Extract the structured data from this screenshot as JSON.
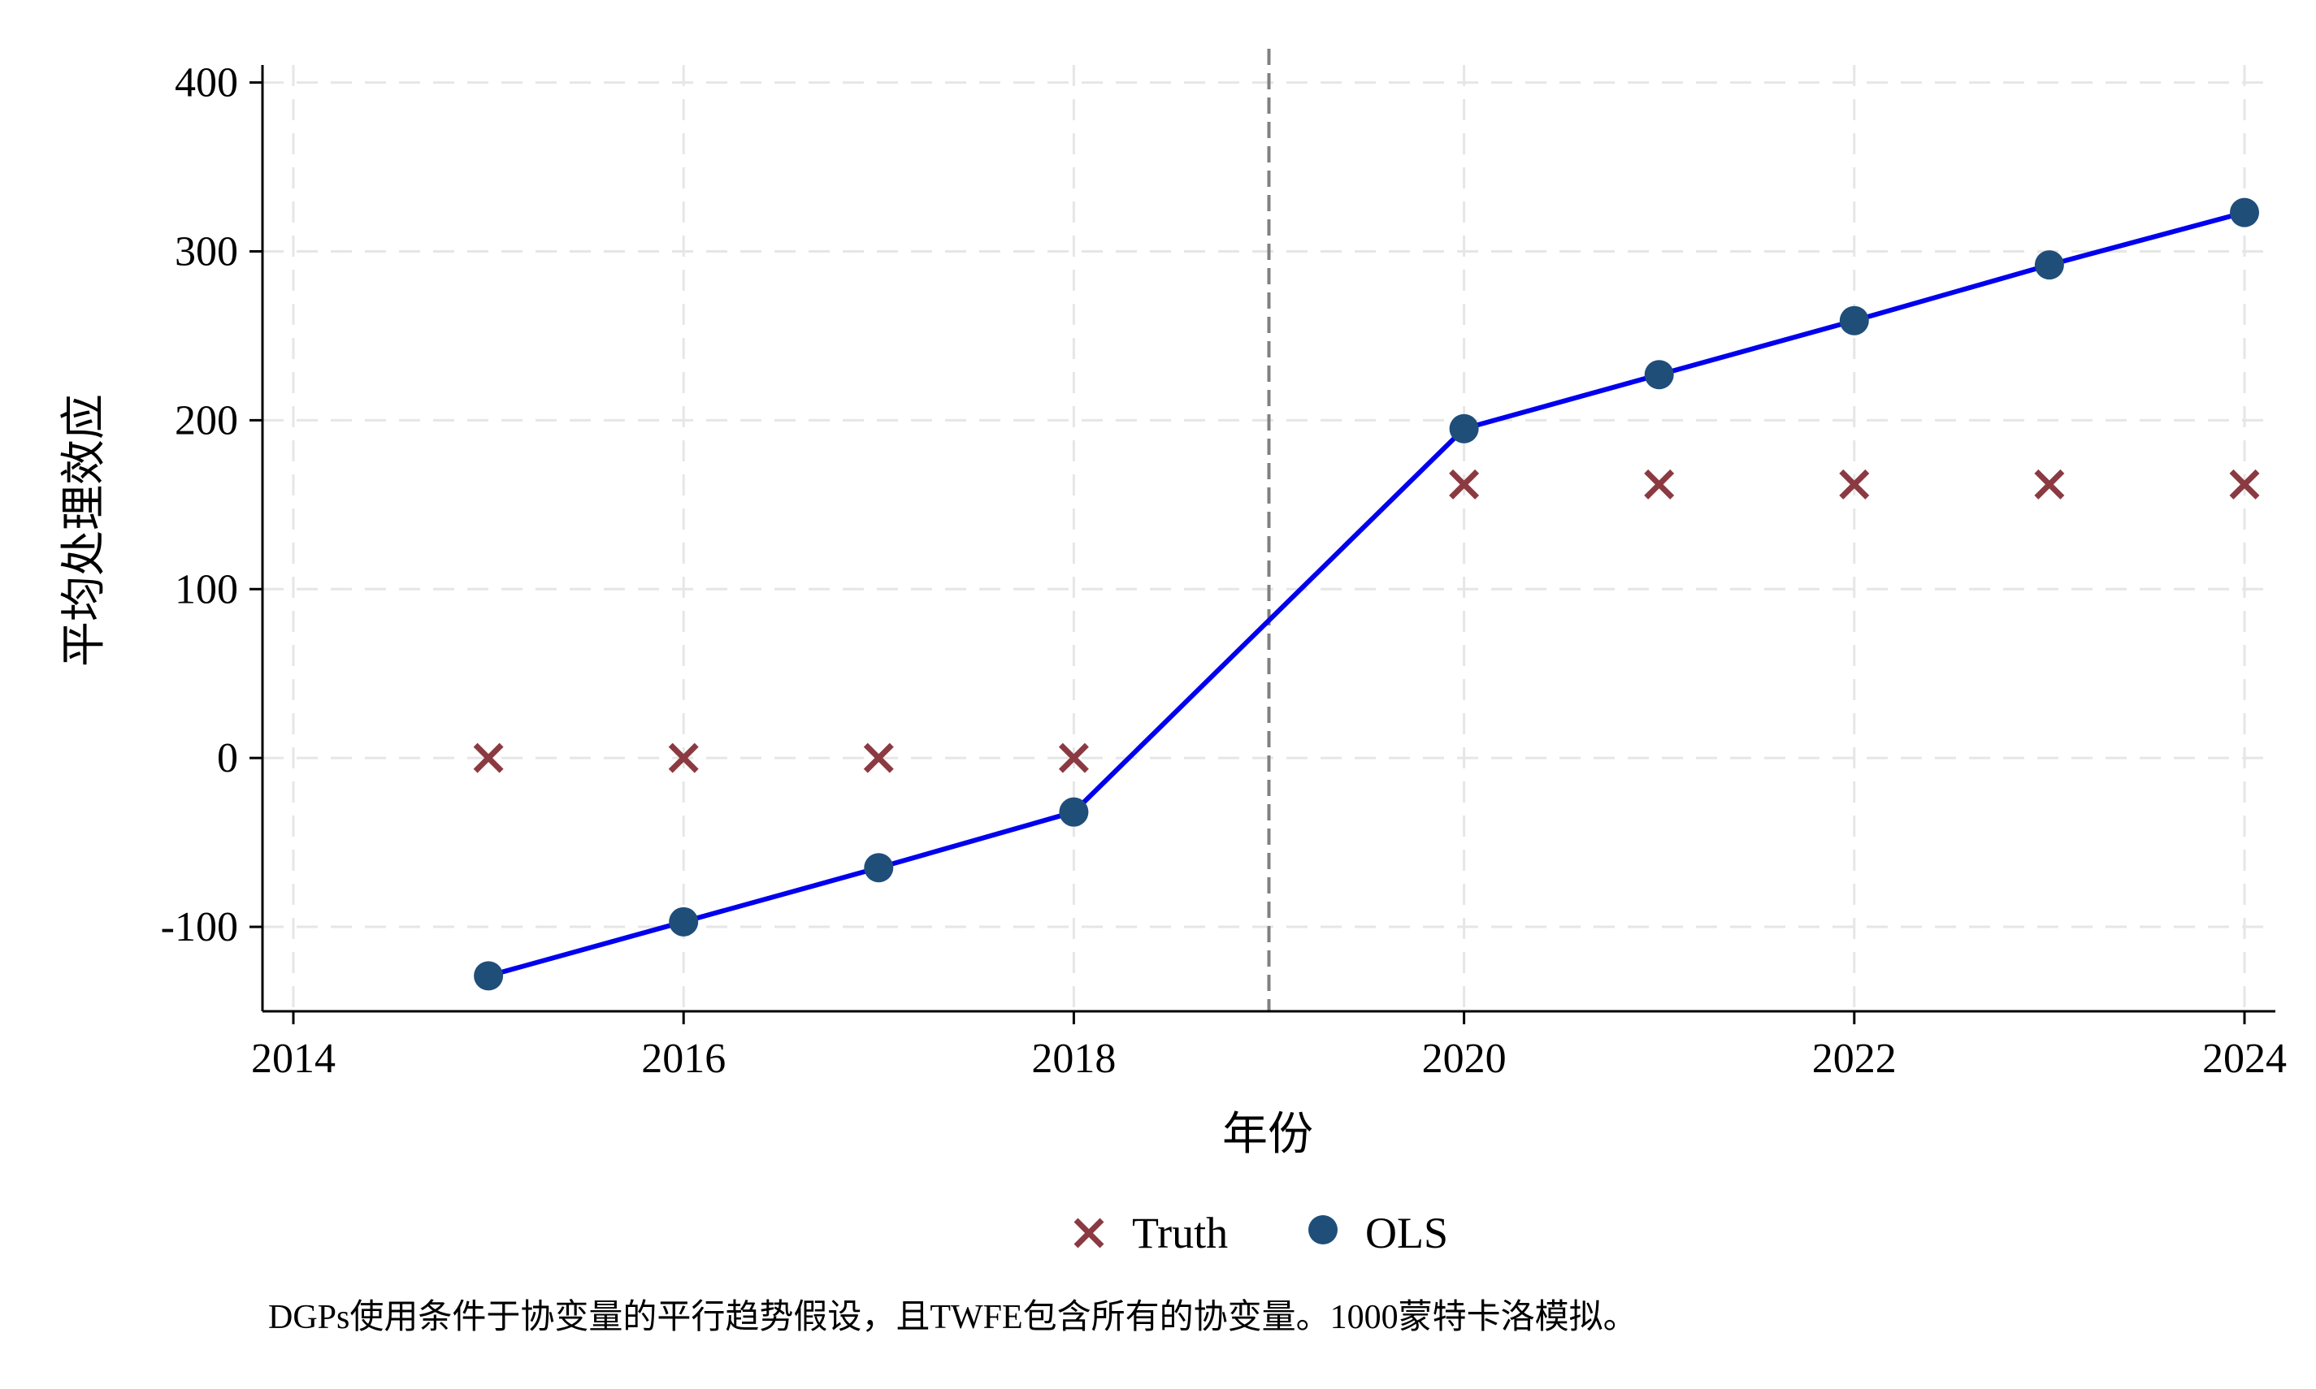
{
  "chart_data": {
    "type": "line",
    "xlabel": "年份",
    "ylabel": "平均处理效应",
    "xlim": [
      2014,
      2024
    ],
    "ylim": [
      -150,
      420
    ],
    "xticks": [
      2014,
      2016,
      2018,
      2020,
      2022,
      2024
    ],
    "yticks": [
      -100,
      0,
      100,
      200,
      300,
      400
    ],
    "ytick_labels": [
      "-100",
      "0",
      "100",
      "200",
      "300",
      "400"
    ],
    "grid": true,
    "reference_line_x": 2019,
    "legend_position": "bottom",
    "series": [
      {
        "name": "Truth",
        "marker": "x",
        "line": false,
        "color": "#8B3A42",
        "x": [
          2015,
          2016,
          2017,
          2018,
          2020,
          2021,
          2022,
          2023,
          2024
        ],
        "y": [
          0,
          0,
          0,
          0,
          162,
          162,
          162,
          162,
          162
        ]
      },
      {
        "name": "OLS",
        "marker": "circle",
        "line": true,
        "color": "#1F4E79",
        "line_color": "#0000EE",
        "x": [
          2015,
          2016,
          2017,
          2018,
          2020,
          2021,
          2022,
          2023,
          2024
        ],
        "y": [
          -129,
          -97,
          -65,
          -32,
          195,
          227,
          259,
          292,
          323
        ]
      }
    ],
    "note": "DGPs使用条件于协变量的平行趋势假设，且TWFE包含所有的协变量。1000蒙特卡洛模拟。"
  }
}
